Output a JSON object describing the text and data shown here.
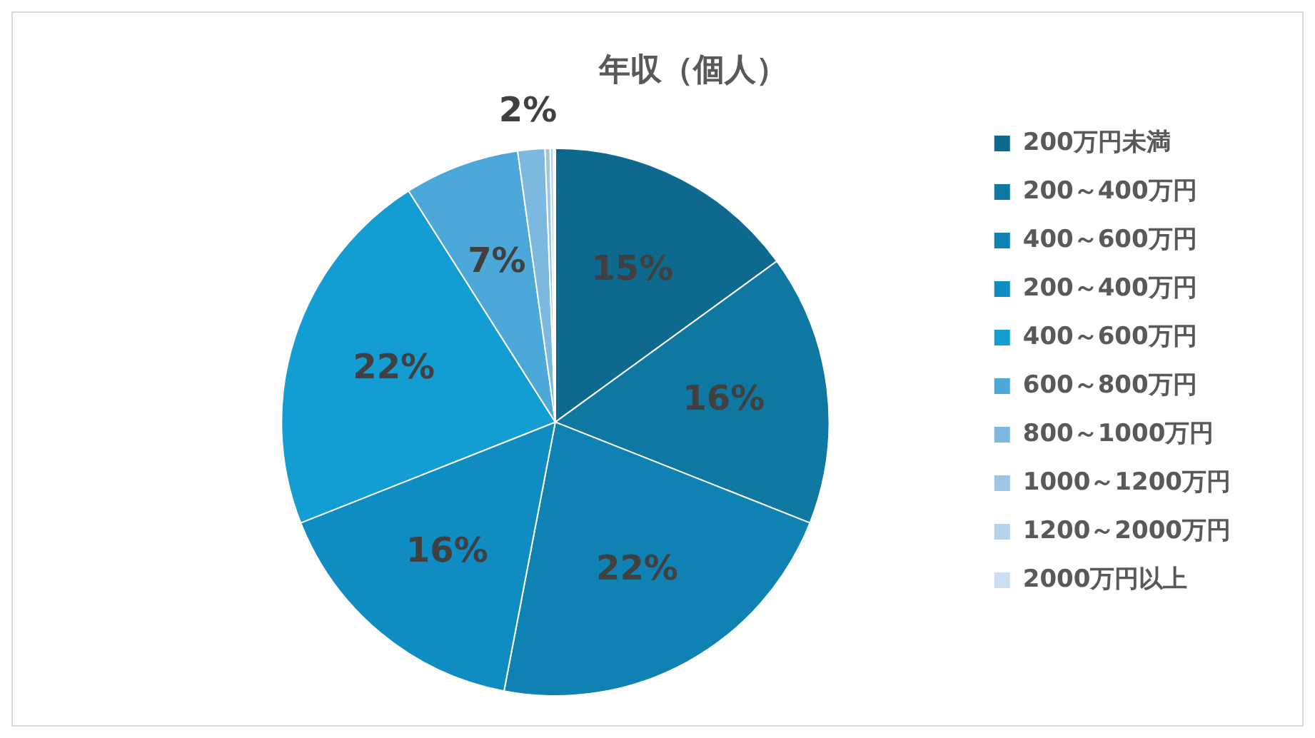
{
  "chart_data": {
    "type": "pie",
    "title": "年収（個人）",
    "categories": [
      "200万円未満",
      "200～400万円",
      "400～600万円",
      "200～400万円",
      "400～600万円",
      "600～800万円",
      "800～1000万円",
      "1000～1200万円",
      "1200～2000万円",
      "2000万円以上"
    ],
    "values": [
      15,
      16,
      22,
      16,
      22,
      6.8,
      1.6,
      0.3,
      0.2,
      0.1
    ],
    "value_labels": [
      "15%",
      "16%",
      "22%",
      "16%",
      "22%",
      "7%",
      "2%",
      null,
      null,
      null
    ],
    "colors": [
      "#0d6a8e",
      "#0e77a2",
      "#0f82b3",
      "#0f8cc2",
      "#149dd3",
      "#4da8da",
      "#7cb8e0",
      "#9dc6e6",
      "#b4d3ec",
      "#cadff1"
    ],
    "legend": "right"
  }
}
